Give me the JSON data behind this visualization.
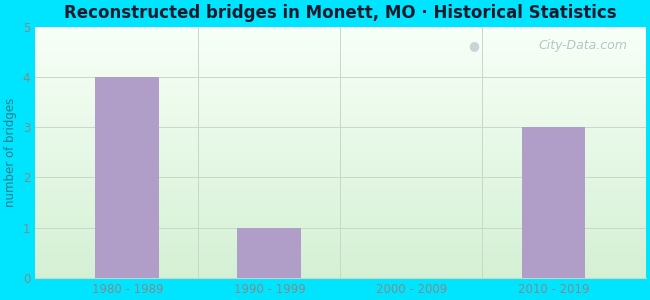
{
  "title": "Reconstructed bridges in Monett, MO · Historical Statistics",
  "categories": [
    "1980 - 1989",
    "1990 - 1999",
    "2000 - 2009",
    "2010 - 2019"
  ],
  "values": [
    4,
    1,
    0,
    3
  ],
  "bar_color": "#b09ec8",
  "ylabel": "number of bridges",
  "ylim": [
    0,
    5
  ],
  "yticks": [
    0,
    1,
    2,
    3,
    4,
    5
  ],
  "background_outer": "#00e5ff",
  "grid_color": "#c8d8c8",
  "title_color": "#1a1a2e",
  "axis_label_color": "#2a7a8a",
  "tick_color": "#888888",
  "watermark_text": "City-Data.com",
  "watermark_color": "#aabbc0"
}
